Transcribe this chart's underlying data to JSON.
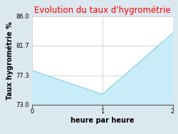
{
  "title": "Evolution du taux d'hygrométrie",
  "xlabel": "heure par heure",
  "ylabel": "Taux hygrométrie %",
  "x": [
    0,
    1,
    2
  ],
  "y": [
    78.0,
    74.5,
    83.5
  ],
  "ylim": [
    73.0,
    86.0
  ],
  "xlim": [
    0,
    2
  ],
  "yticks": [
    73.0,
    77.3,
    81.7,
    86.0
  ],
  "xticks": [
    0,
    1,
    2
  ],
  "line_color": "#8dd4e8",
  "fill_color": "#c8ecf8",
  "title_color": "#ff0000",
  "background_color": "#dce8f0",
  "plot_bg_color": "#ffffff",
  "grid_color": "#cccccc",
  "title_fontsize": 8.5,
  "label_fontsize": 7,
  "tick_fontsize": 6
}
